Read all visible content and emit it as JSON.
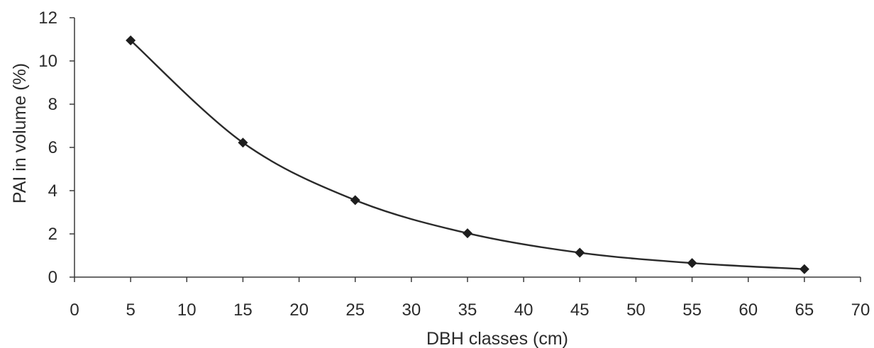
{
  "chart_data": {
    "type": "line",
    "title": "",
    "xlabel": "DBH classes (cm)",
    "ylabel": "PAI  in volume (%)",
    "xlim": [
      0,
      70
    ],
    "ylim": [
      0,
      12
    ],
    "xticks": [
      "0",
      "5",
      "10",
      "15",
      "20",
      "25",
      "30",
      "35",
      "40",
      "45",
      "50",
      "55",
      "60",
      "65",
      "70"
    ],
    "yticks": [
      "0",
      "2",
      "4",
      "6",
      "8",
      "10",
      "12"
    ],
    "grid": false,
    "legend": "none",
    "smooth": true,
    "marker": "diamond",
    "line_color": "#2a2a2a",
    "series": [
      {
        "x": [
          5,
          15,
          25,
          35,
          45,
          55,
          65
        ],
        "values": [
          10.95,
          6.22,
          3.56,
          2.03,
          1.13,
          0.65,
          0.37
        ]
      }
    ]
  }
}
